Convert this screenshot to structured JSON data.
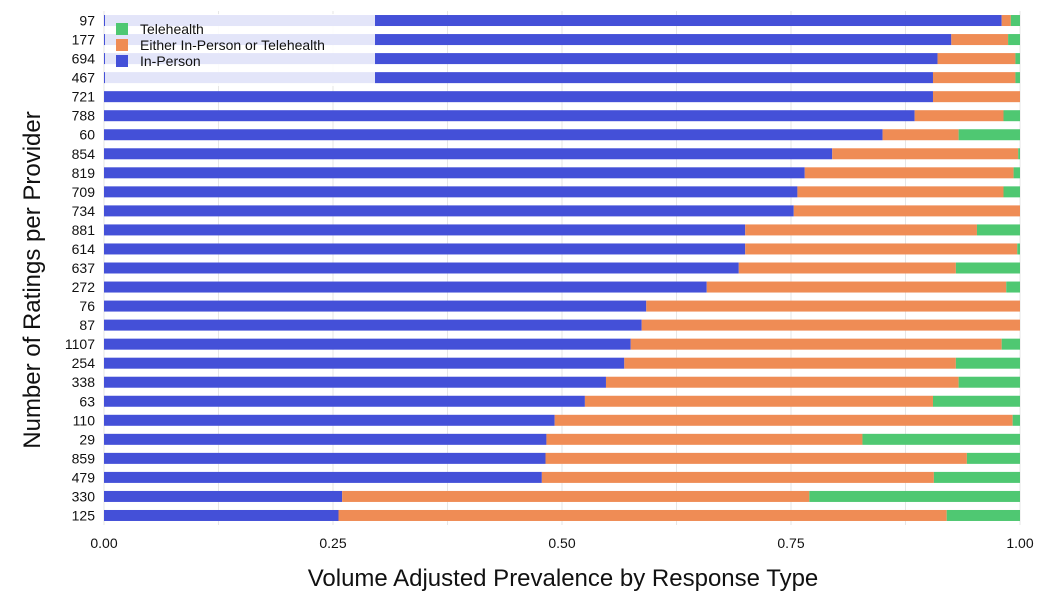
{
  "chart_data": {
    "type": "bar",
    "orientation": "horizontal",
    "stacked": true,
    "xlabel": "Volume Adjusted Prevalence by Response Type",
    "ylabel": "Number of Ratings per Provider",
    "xlim": [
      0,
      1
    ],
    "x_ticks": [
      "0.00",
      "0.25",
      "0.50",
      "0.75",
      "1.00"
    ],
    "grid": true,
    "legend_position": "top-left",
    "categories": [
      "97",
      "177",
      "694",
      "467",
      "721",
      "788",
      "60",
      "854",
      "819",
      "709",
      "734",
      "881",
      "614",
      "637",
      "272",
      "76",
      "87",
      "1107",
      "254",
      "338",
      "63",
      "110",
      "29",
      "859",
      "479",
      "330",
      "125"
    ],
    "series": [
      {
        "name": "In-Person",
        "color": "#4450d8",
        "values": [
          0.98,
          0.925,
          0.91,
          0.905,
          0.905,
          0.885,
          0.85,
          0.795,
          0.765,
          0.757,
          0.753,
          0.7,
          0.7,
          0.693,
          0.658,
          0.592,
          0.587,
          0.575,
          0.568,
          0.548,
          0.525,
          0.492,
          0.483,
          0.482,
          0.478,
          0.26,
          0.256
        ]
      },
      {
        "name": "Either In-Person or Telehealth",
        "color": "#ef8c55",
        "values": [
          0.01,
          0.062,
          0.085,
          0.09,
          0.095,
          0.097,
          0.083,
          0.203,
          0.228,
          0.225,
          0.247,
          0.253,
          0.297,
          0.237,
          0.327,
          0.408,
          0.413,
          0.405,
          0.362,
          0.385,
          0.38,
          0.5,
          0.345,
          0.46,
          0.428,
          0.51,
          0.664
        ]
      },
      {
        "name": "Telehealth",
        "color": "#4fc872",
        "values": [
          0.01,
          0.013,
          0.005,
          0.005,
          0.0,
          0.018,
          0.067,
          0.002,
          0.007,
          0.018,
          0.0,
          0.047,
          0.003,
          0.07,
          0.015,
          0.0,
          0.0,
          0.02,
          0.07,
          0.067,
          0.095,
          0.008,
          0.172,
          0.058,
          0.094,
          0.23,
          0.08
        ]
      }
    ],
    "legend_order": [
      "Telehealth",
      "Either In-Person or Telehealth",
      "In-Person"
    ]
  }
}
